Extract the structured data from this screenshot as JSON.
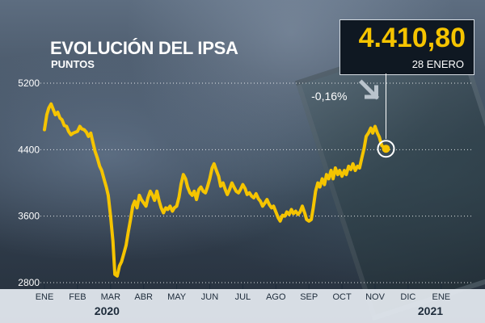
{
  "header": {
    "title": "EVOLUCIÓN DEL IPSA",
    "subtitle": "PUNTOS"
  },
  "highlight": {
    "value": "4.410,80",
    "date": "28 ENERO",
    "change": "-0,16%"
  },
  "colors": {
    "line": "#f5c400",
    "value_text": "#f5c400",
    "box_bg": "#0f1822",
    "grid": "#ffffff",
    "bottom_bar": "#e6ecf2"
  },
  "chart_data": {
    "type": "line",
    "title": "EVOLUCIÓN DEL IPSA",
    "ylabel": "PUNTOS",
    "xlabel": "",
    "ylim": [
      2800,
      5200
    ],
    "yticks": [
      2800,
      3600,
      4400,
      5200
    ],
    "grid": "horizontal dotted",
    "x_labels": [
      "ENE",
      "FEB",
      "MAR",
      "ABR",
      "MAY",
      "JUN",
      "JUL",
      "AGO",
      "SEP",
      "OCT",
      "NOV",
      "DIC",
      "ENE"
    ],
    "years": [
      "2020",
      "2021"
    ],
    "end_point": {
      "date": "28 ENERO 2021",
      "value": 4410.8,
      "change": "-0,16%"
    },
    "series": [
      {
        "values": [
          [
            0.0,
            4640
          ],
          [
            0.07,
            4820
          ],
          [
            0.13,
            4900
          ],
          [
            0.2,
            4950
          ],
          [
            0.27,
            4880
          ],
          [
            0.33,
            4820
          ],
          [
            0.4,
            4850
          ],
          [
            0.47,
            4780
          ],
          [
            0.53,
            4760
          ],
          [
            0.6,
            4690
          ],
          [
            0.67,
            4680
          ],
          [
            0.73,
            4620
          ],
          [
            0.8,
            4580
          ],
          [
            0.87,
            4600
          ],
          [
            1.0,
            4620
          ],
          [
            1.07,
            4680
          ],
          [
            1.13,
            4650
          ],
          [
            1.2,
            4640
          ],
          [
            1.27,
            4610
          ],
          [
            1.33,
            4560
          ],
          [
            1.4,
            4600
          ],
          [
            1.47,
            4480
          ],
          [
            1.53,
            4380
          ],
          [
            1.6,
            4300
          ],
          [
            1.67,
            4200
          ],
          [
            1.73,
            4150
          ],
          [
            1.8,
            4050
          ],
          [
            1.87,
            3950
          ],
          [
            1.93,
            3850
          ],
          [
            2.0,
            3600
          ],
          [
            2.07,
            3300
          ],
          [
            2.13,
            2900
          ],
          [
            2.2,
            2880
          ],
          [
            2.27,
            3000
          ],
          [
            2.33,
            3050
          ],
          [
            2.4,
            3150
          ],
          [
            2.47,
            3250
          ],
          [
            2.53,
            3400
          ],
          [
            2.6,
            3550
          ],
          [
            2.67,
            3720
          ],
          [
            2.73,
            3780
          ],
          [
            2.8,
            3700
          ],
          [
            2.87,
            3850
          ],
          [
            2.93,
            3800
          ],
          [
            3.0,
            3760
          ],
          [
            3.07,
            3720
          ],
          [
            3.13,
            3820
          ],
          [
            3.2,
            3900
          ],
          [
            3.27,
            3850
          ],
          [
            3.33,
            3790
          ],
          [
            3.4,
            3900
          ],
          [
            3.47,
            3780
          ],
          [
            3.53,
            3700
          ],
          [
            3.6,
            3640
          ],
          [
            3.67,
            3700
          ],
          [
            3.73,
            3680
          ],
          [
            3.8,
            3720
          ],
          [
            3.87,
            3660
          ],
          [
            3.93,
            3700
          ],
          [
            4.0,
            3720
          ],
          [
            4.07,
            3830
          ],
          [
            4.13,
            3980
          ],
          [
            4.2,
            4100
          ],
          [
            4.27,
            4050
          ],
          [
            4.33,
            3950
          ],
          [
            4.4,
            3880
          ],
          [
            4.47,
            3850
          ],
          [
            4.53,
            3900
          ],
          [
            4.6,
            3800
          ],
          [
            4.67,
            3920
          ],
          [
            4.73,
            3950
          ],
          [
            4.8,
            3900
          ],
          [
            4.87,
            3880
          ],
          [
            4.93,
            3950
          ],
          [
            5.0,
            4050
          ],
          [
            5.07,
            4180
          ],
          [
            5.13,
            4230
          ],
          [
            5.2,
            4150
          ],
          [
            5.27,
            4080
          ],
          [
            5.33,
            3960
          ],
          [
            5.4,
            4000
          ],
          [
            5.47,
            3920
          ],
          [
            5.53,
            3860
          ],
          [
            5.6,
            3920
          ],
          [
            5.67,
            4000
          ],
          [
            5.73,
            3950
          ],
          [
            5.8,
            3900
          ],
          [
            5.87,
            3880
          ],
          [
            5.93,
            3920
          ],
          [
            6.0,
            3980
          ],
          [
            6.07,
            3930
          ],
          [
            6.13,
            3860
          ],
          [
            6.2,
            3880
          ],
          [
            6.27,
            3840
          ],
          [
            6.33,
            3820
          ],
          [
            6.4,
            3870
          ],
          [
            6.47,
            3810
          ],
          [
            6.53,
            3780
          ],
          [
            6.6,
            3720
          ],
          [
            6.67,
            3760
          ],
          [
            6.73,
            3800
          ],
          [
            6.8,
            3740
          ],
          [
            6.87,
            3700
          ],
          [
            6.93,
            3720
          ],
          [
            7.0,
            3650
          ],
          [
            7.07,
            3580
          ],
          [
            7.13,
            3540
          ],
          [
            7.2,
            3610
          ],
          [
            7.27,
            3600
          ],
          [
            7.33,
            3650
          ],
          [
            7.4,
            3620
          ],
          [
            7.47,
            3680
          ],
          [
            7.53,
            3630
          ],
          [
            7.6,
            3660
          ],
          [
            7.67,
            3620
          ],
          [
            7.73,
            3650
          ],
          [
            7.8,
            3720
          ],
          [
            7.87,
            3640
          ],
          [
            7.93,
            3560
          ],
          [
            8.0,
            3540
          ],
          [
            8.07,
            3560
          ],
          [
            8.13,
            3700
          ],
          [
            8.2,
            3900
          ],
          [
            8.27,
            4000
          ],
          [
            8.33,
            3950
          ],
          [
            8.4,
            4050
          ],
          [
            8.47,
            3980
          ],
          [
            8.53,
            4100
          ],
          [
            8.6,
            4050
          ],
          [
            8.67,
            4150
          ],
          [
            8.73,
            4050
          ],
          [
            8.8,
            4180
          ],
          [
            8.87,
            4100
          ],
          [
            8.93,
            4150
          ],
          [
            9.0,
            4080
          ],
          [
            9.07,
            4150
          ],
          [
            9.13,
            4100
          ],
          [
            9.2,
            4200
          ],
          [
            9.27,
            4160
          ],
          [
            9.33,
            4230
          ],
          [
            9.4,
            4150
          ],
          [
            9.47,
            4200
          ],
          [
            9.53,
            4180
          ],
          [
            9.6,
            4300
          ],
          [
            9.67,
            4420
          ],
          [
            9.73,
            4560
          ],
          [
            9.8,
            4600
          ],
          [
            9.87,
            4660
          ],
          [
            9.93,
            4600
          ],
          [
            10.0,
            4680
          ],
          [
            10.07,
            4600
          ],
          [
            10.13,
            4550
          ],
          [
            10.2,
            4450
          ],
          [
            10.27,
            4430
          ],
          [
            10.33,
            4411
          ]
        ]
      }
    ]
  }
}
